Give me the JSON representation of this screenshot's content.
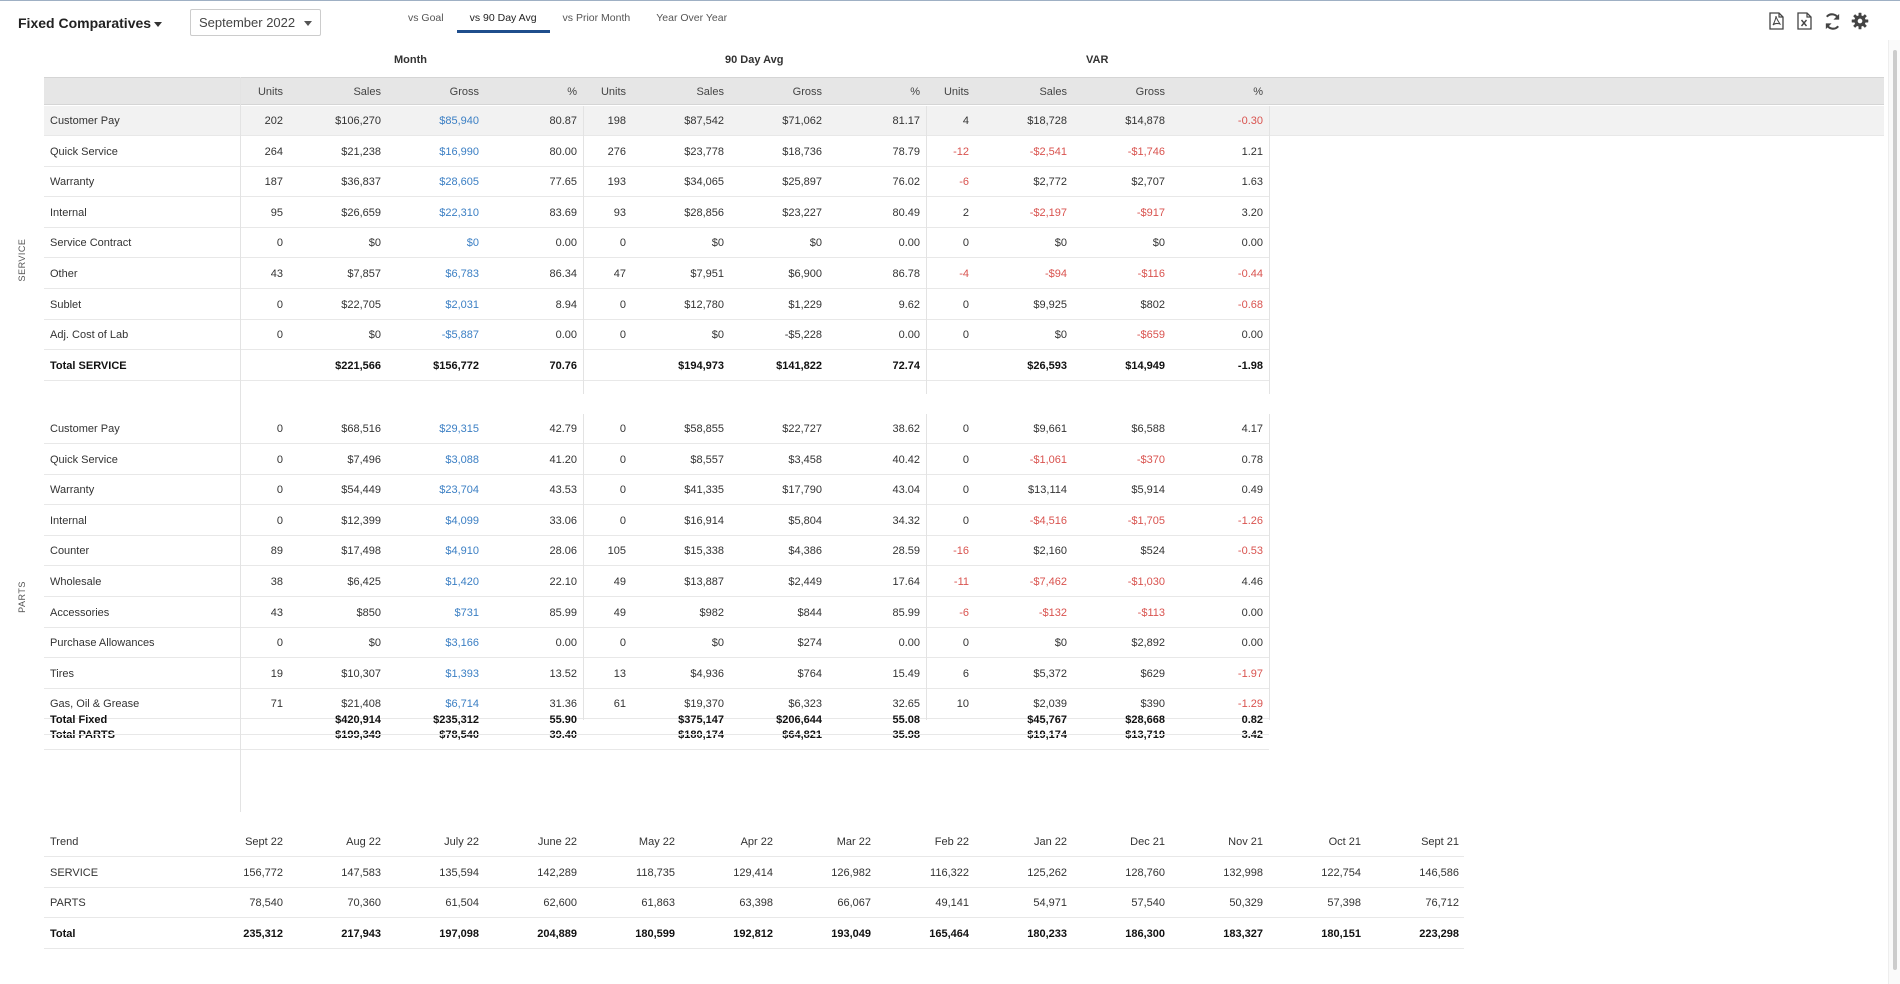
{
  "header": {
    "title": "Fixed Comparatives",
    "month": "September 2022",
    "tabs": [
      "vs Goal",
      "vs 90 Day Avg",
      "vs Prior Month",
      "Year Over Year"
    ],
    "active_tab": 1
  },
  "groups": [
    "Month",
    "90 Day Avg",
    "VAR"
  ],
  "columns": [
    "Units",
    "Sales",
    "Gross",
    "%",
    "Units",
    "Sales",
    "Gross",
    "%",
    "Units",
    "Sales",
    "Gross",
    "%"
  ],
  "sections": {
    "service_label": "SERVICE",
    "parts_label": "PARTS"
  },
  "service_rows": [
    {
      "label": "Customer Pay",
      "cells": [
        "202",
        "$106,270",
        "$85,940",
        "80.87",
        "198",
        "$87,542",
        "$71,062",
        "81.17",
        "4",
        "$18,728",
        "$14,878",
        "-0.30"
      ]
    },
    {
      "label": "Quick Service",
      "cells": [
        "264",
        "$21,238",
        "$16,990",
        "80.00",
        "276",
        "$23,778",
        "$18,736",
        "78.79",
        "-12",
        "-$2,541",
        "-$1,746",
        "1.21"
      ]
    },
    {
      "label": "Warranty",
      "cells": [
        "187",
        "$36,837",
        "$28,605",
        "77.65",
        "193",
        "$34,065",
        "$25,897",
        "76.02",
        "-6",
        "$2,772",
        "$2,707",
        "1.63"
      ]
    },
    {
      "label": "Internal",
      "cells": [
        "95",
        "$26,659",
        "$22,310",
        "83.69",
        "93",
        "$28,856",
        "$23,227",
        "80.49",
        "2",
        "-$2,197",
        "-$917",
        "3.20"
      ]
    },
    {
      "label": "Service Contract",
      "cells": [
        "0",
        "$0",
        "$0",
        "0.00",
        "0",
        "$0",
        "$0",
        "0.00",
        "0",
        "$0",
        "$0",
        "0.00"
      ]
    },
    {
      "label": "Other",
      "cells": [
        "43",
        "$7,857",
        "$6,783",
        "86.34",
        "47",
        "$7,951",
        "$6,900",
        "86.78",
        "-4",
        "-$94",
        "-$116",
        "-0.44"
      ]
    },
    {
      "label": "Sublet",
      "cells": [
        "0",
        "$22,705",
        "$2,031",
        "8.94",
        "0",
        "$12,780",
        "$1,229",
        "9.62",
        "0",
        "$9,925",
        "$802",
        "-0.68"
      ]
    },
    {
      "label": "Adj. Cost of Lab",
      "cells": [
        "0",
        "$0",
        "-$5,887",
        "0.00",
        "0",
        "$0",
        "-$5,228",
        "0.00",
        "0",
        "$0",
        "-$659",
        "0.00"
      ]
    }
  ],
  "service_total": {
    "label": "Total SERVICE",
    "cells": [
      "",
      "$221,566",
      "$156,772",
      "70.76",
      "",
      "$194,973",
      "$141,822",
      "72.74",
      "",
      "$26,593",
      "$14,949",
      "-1.98"
    ]
  },
  "parts_rows": [
    {
      "label": "Customer Pay",
      "cells": [
        "0",
        "$68,516",
        "$29,315",
        "42.79",
        "0",
        "$58,855",
        "$22,727",
        "38.62",
        "0",
        "$9,661",
        "$6,588",
        "4.17"
      ]
    },
    {
      "label": "Quick Service",
      "cells": [
        "0",
        "$7,496",
        "$3,088",
        "41.20",
        "0",
        "$8,557",
        "$3,458",
        "40.42",
        "0",
        "-$1,061",
        "-$370",
        "0.78"
      ]
    },
    {
      "label": "Warranty",
      "cells": [
        "0",
        "$54,449",
        "$23,704",
        "43.53",
        "0",
        "$41,335",
        "$17,790",
        "43.04",
        "0",
        "$13,114",
        "$5,914",
        "0.49"
      ]
    },
    {
      "label": "Internal",
      "cells": [
        "0",
        "$12,399",
        "$4,099",
        "33.06",
        "0",
        "$16,914",
        "$5,804",
        "34.32",
        "0",
        "-$4,516",
        "-$1,705",
        "-1.26"
      ]
    },
    {
      "label": "Counter",
      "cells": [
        "89",
        "$17,498",
        "$4,910",
        "28.06",
        "105",
        "$15,338",
        "$4,386",
        "28.59",
        "-16",
        "$2,160",
        "$524",
        "-0.53"
      ]
    },
    {
      "label": "Wholesale",
      "cells": [
        "38",
        "$6,425",
        "$1,420",
        "22.10",
        "49",
        "$13,887",
        "$2,449",
        "17.64",
        "-11",
        "-$7,462",
        "-$1,030",
        "4.46"
      ]
    },
    {
      "label": "Accessories",
      "cells": [
        "43",
        "$850",
        "$731",
        "85.99",
        "49",
        "$982",
        "$844",
        "85.99",
        "-6",
        "-$132",
        "-$113",
        "0.00"
      ]
    },
    {
      "label": "Purchase Allowances",
      "cells": [
        "0",
        "$0",
        "$3,166",
        "0.00",
        "0",
        "$0",
        "$274",
        "0.00",
        "0",
        "$0",
        "$2,892",
        "0.00"
      ]
    },
    {
      "label": "Tires",
      "cells": [
        "19",
        "$10,307",
        "$1,393",
        "13.52",
        "13",
        "$4,936",
        "$764",
        "15.49",
        "6",
        "$5,372",
        "$629",
        "-1.97"
      ]
    },
    {
      "label": "Gas, Oil & Grease",
      "cells": [
        "71",
        "$21,408",
        "$6,714",
        "31.36",
        "61",
        "$19,370",
        "$6,323",
        "32.65",
        "10",
        "$2,039",
        "$390",
        "-1.29"
      ]
    }
  ],
  "parts_total": {
    "label": "Total PARTS",
    "cells": [
      "",
      "$199,349",
      "$78,540",
      "39.40",
      "",
      "$180,174",
      "$64,821",
      "35.98",
      "",
      "$19,174",
      "$13,719",
      "3.42"
    ]
  },
  "total_fixed": {
    "label": "Total Fixed",
    "cells": [
      "",
      "$420,914",
      "$235,312",
      "55.90",
      "",
      "$375,147",
      "$206,644",
      "55.08",
      "",
      "$45,767",
      "$28,668",
      "0.82"
    ]
  },
  "trend": {
    "label": "Trend",
    "periods": [
      "Sept 22",
      "Aug 22",
      "July 22",
      "June 22",
      "May 22",
      "Apr 22",
      "Mar 22",
      "Feb 22",
      "Jan 22",
      "Dec 21",
      "Nov 21",
      "Oct 21",
      "Sept 21"
    ],
    "rows": [
      {
        "label": "SERVICE",
        "values": [
          "156,772",
          "147,583",
          "135,594",
          "142,289",
          "118,735",
          "129,414",
          "126,982",
          "116,322",
          "125,262",
          "128,760",
          "132,998",
          "122,754",
          "146,586"
        ]
      },
      {
        "label": "PARTS",
        "values": [
          "78,540",
          "70,360",
          "61,504",
          "62,600",
          "61,863",
          "63,398",
          "66,067",
          "49,141",
          "54,971",
          "57,540",
          "50,329",
          "57,398",
          "76,712"
        ]
      },
      {
        "label": "Total",
        "values": [
          "235,312",
          "217,943",
          "197,098",
          "204,889",
          "180,599",
          "192,812",
          "193,049",
          "165,464",
          "180,233",
          "186,300",
          "183,327",
          "180,151",
          "223,298"
        ]
      }
    ]
  },
  "colors": {
    "negative": "#d9534f",
    "link": "#3b7fc4",
    "header_bg": "#e6e6e6",
    "tab_underline": "#1f4e8c"
  }
}
